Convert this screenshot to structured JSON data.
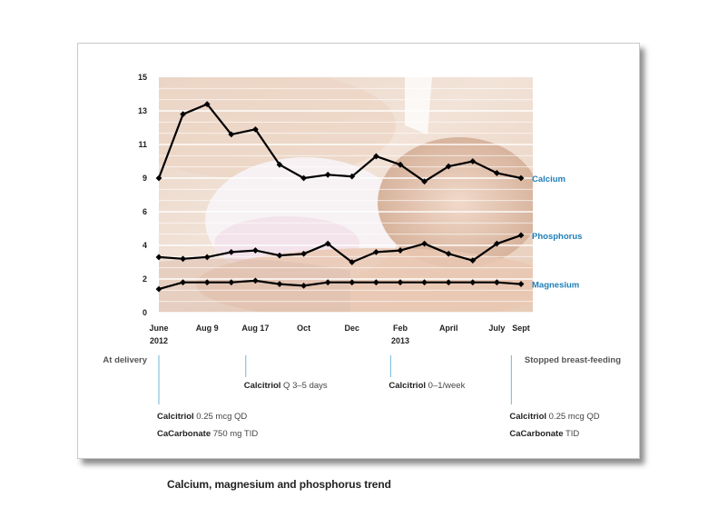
{
  "caption": "Calcium, magnesium and phosphorus trend",
  "colors": {
    "series_label": "#1d7fb8",
    "line": "#000000",
    "grid": "#ffffff",
    "annotation_text": "#444444",
    "annotation_line": "#6fb6da",
    "axis_text": "#222222"
  },
  "chart_data": {
    "type": "line",
    "title": "",
    "xlabel": "",
    "ylabel": "",
    "ylim": [
      0,
      15
    ],
    "y_ticks": [
      0,
      2,
      4,
      6,
      9,
      11,
      13,
      15
    ],
    "grid": true,
    "background": "photo of mother breast-feeding infant",
    "x_tick_labels": [
      {
        "index": 0,
        "lines": [
          "June",
          "2012"
        ]
      },
      {
        "index": 2,
        "lines": [
          "Aug 9"
        ]
      },
      {
        "index": 4,
        "lines": [
          "Aug 17"
        ]
      },
      {
        "index": 6,
        "lines": [
          "Oct"
        ]
      },
      {
        "index": 8,
        "lines": [
          "Dec"
        ]
      },
      {
        "index": 10,
        "lines": [
          "Feb",
          "2013"
        ]
      },
      {
        "index": 12,
        "lines": [
          "April"
        ]
      },
      {
        "index": 14,
        "lines": [
          "July"
        ]
      },
      {
        "index": 15,
        "lines": [
          "Sept"
        ]
      }
    ],
    "n_points": 16,
    "series": [
      {
        "name": "Calcium",
        "values": [
          9.0,
          12.8,
          13.4,
          11.6,
          11.9,
          9.8,
          9.0,
          9.2,
          9.1,
          10.3,
          9.8,
          8.7,
          9.7,
          10.0,
          9.3,
          9.0
        ]
      },
      {
        "name": "Phosphorus",
        "values": [
          3.3,
          3.2,
          3.3,
          3.6,
          3.7,
          3.4,
          3.5,
          4.1,
          3.0,
          3.6,
          3.7,
          4.1,
          3.5,
          3.1,
          4.1,
          4.6
        ]
      },
      {
        "name": "Magnesium",
        "values": [
          1.4,
          1.8,
          1.8,
          1.8,
          1.9,
          1.7,
          1.6,
          1.8,
          1.8,
          1.8,
          1.8,
          1.8,
          1.8,
          1.8,
          1.8,
          1.7
        ]
      }
    ],
    "annotations": [
      {
        "header": "At delivery",
        "at_index": 0,
        "lines": [
          {
            "bold": "Calcitriol",
            "rest": " 0.25 mcg QD"
          },
          {
            "bold": "CaCarbonate",
            "rest": " 750 mg TID"
          }
        ]
      },
      {
        "header": "",
        "at_index": 3.6,
        "lines": [
          {
            "bold": "Calcitriol",
            "rest": " Q 3–5 days"
          }
        ]
      },
      {
        "header": "",
        "at_index": 9.6,
        "lines": [
          {
            "bold": "Calcitriol",
            "rest": " 0–1/week"
          }
        ]
      },
      {
        "header": "Stopped breast-feeding",
        "at_index": 14.6,
        "lines": [
          {
            "bold": "Calcitriol",
            "rest": " 0.25 mcg QD"
          },
          {
            "bold": "CaCarbonate",
            "rest": " TID"
          }
        ]
      }
    ]
  }
}
